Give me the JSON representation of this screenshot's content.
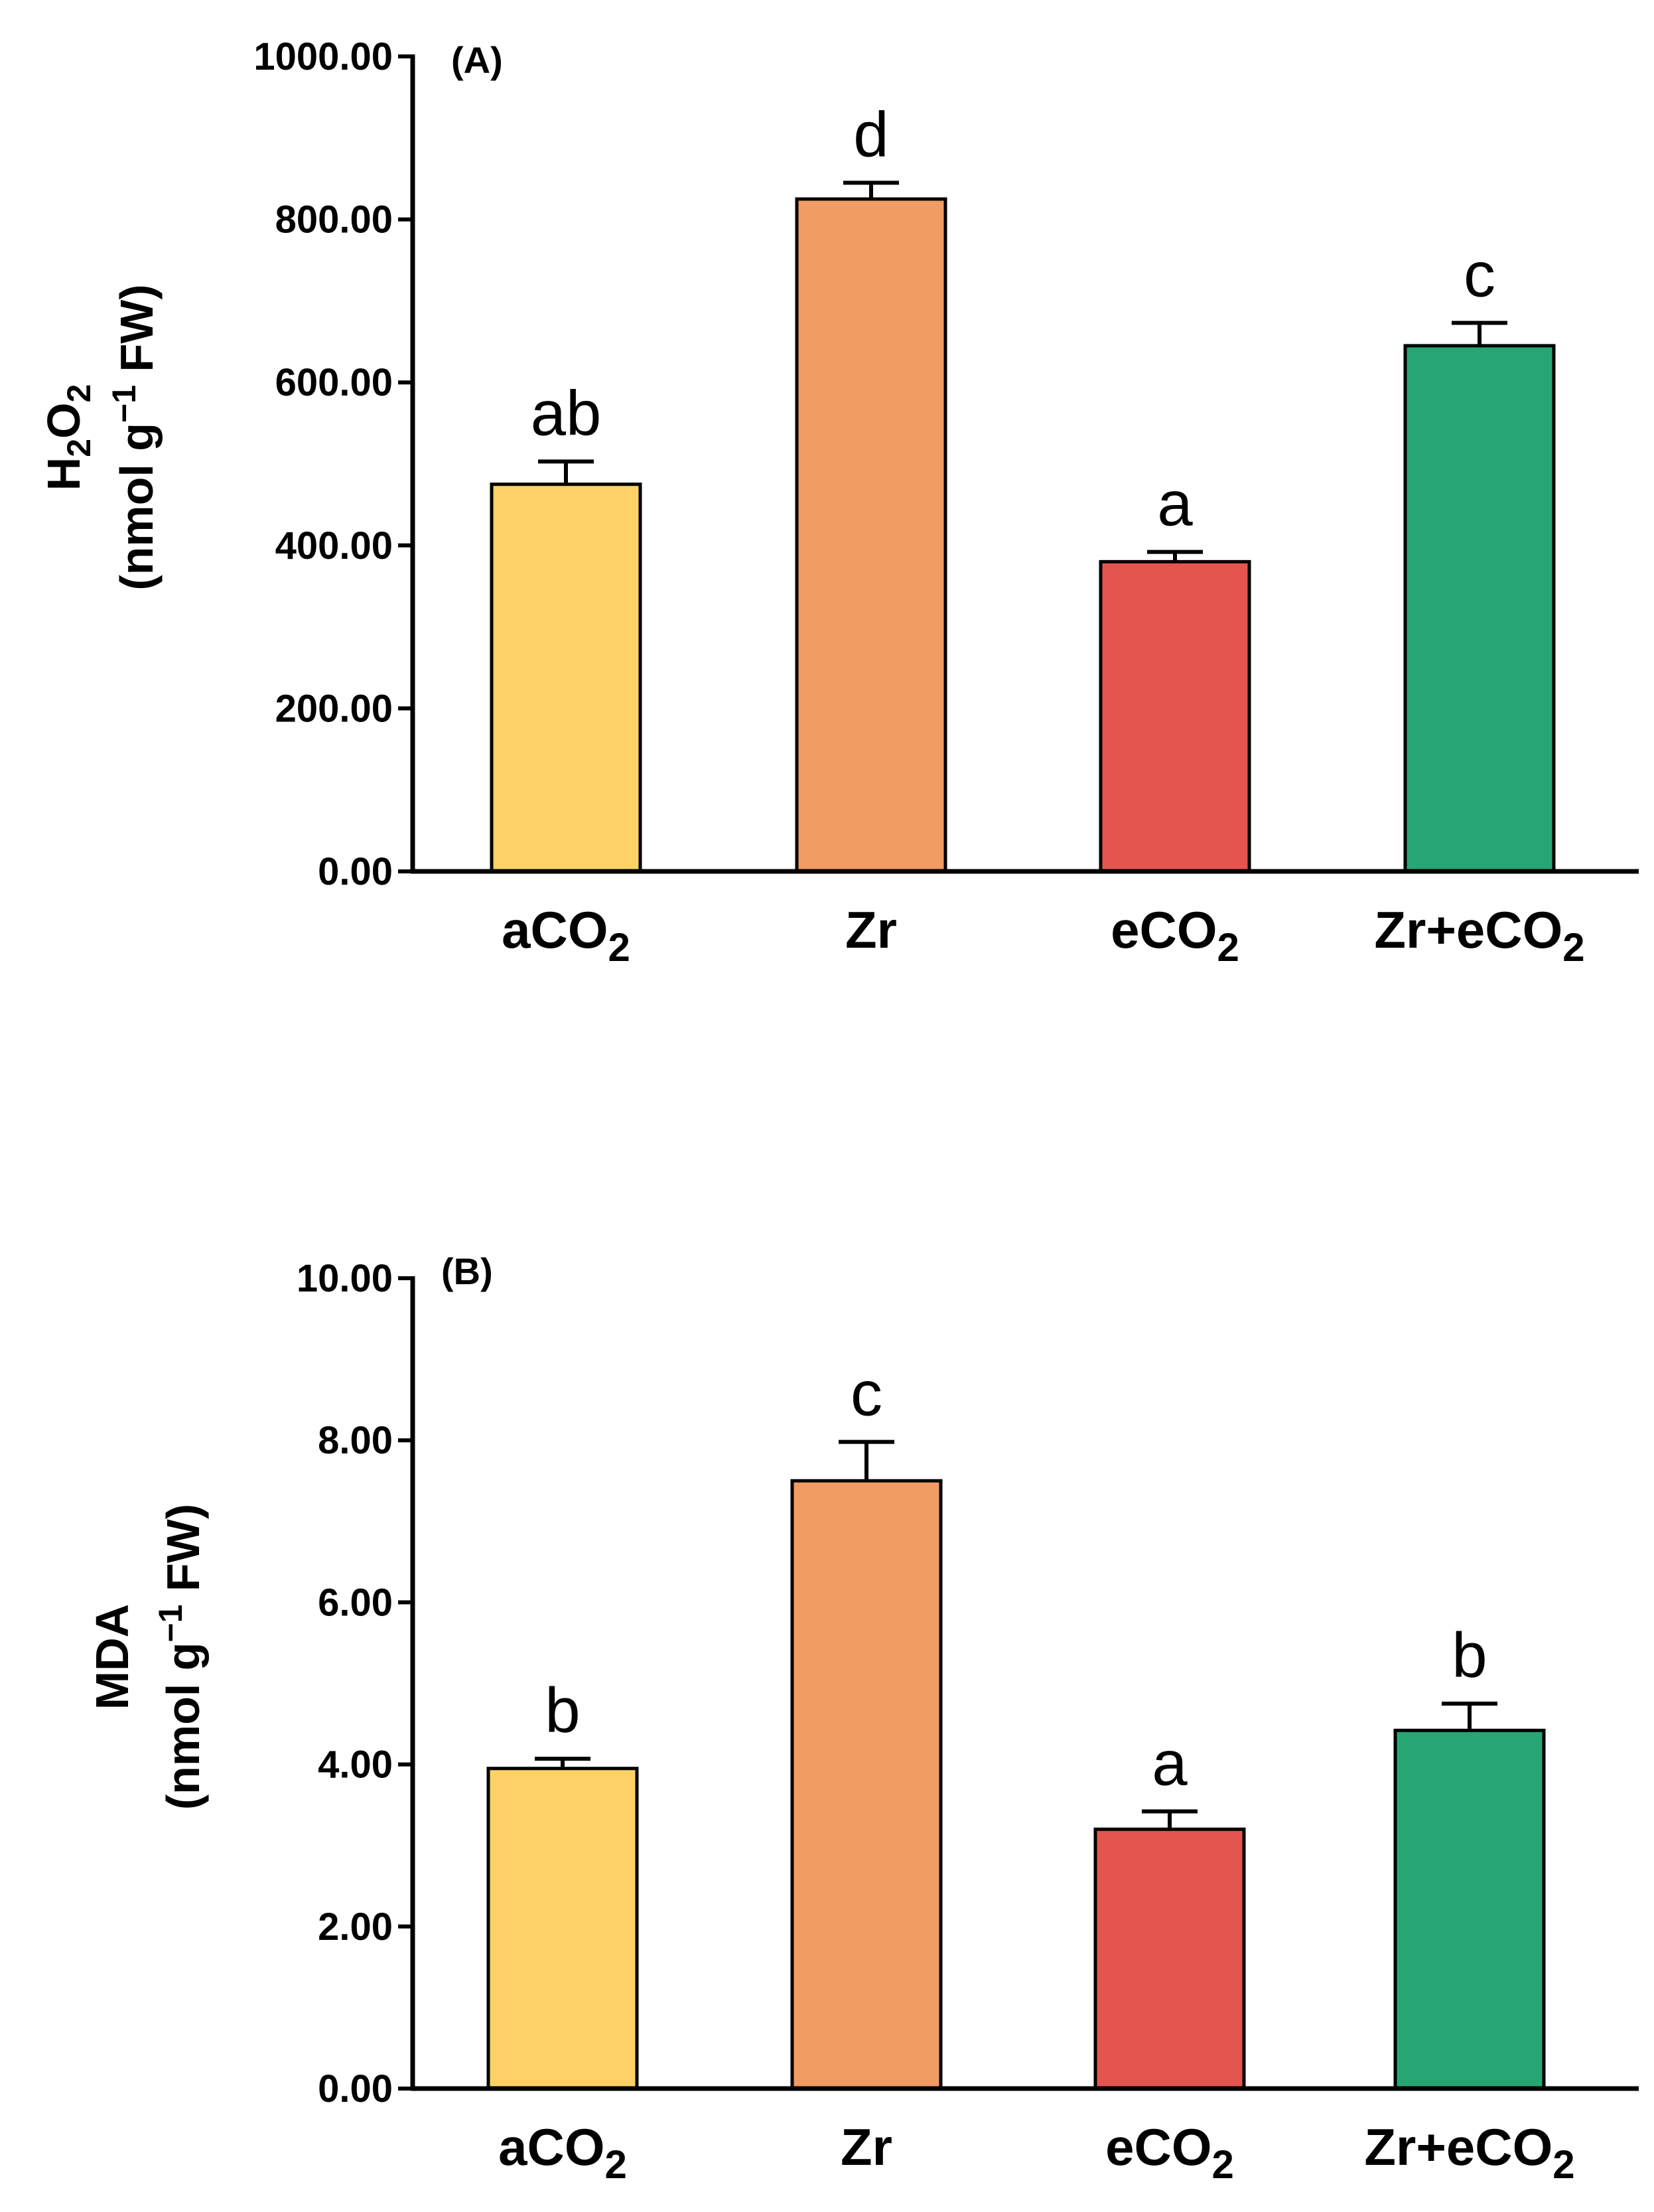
{
  "chart_data": [
    {
      "panel": "(A)",
      "type": "bar",
      "categories": [
        {
          "base": "aCO",
          "sub": "2"
        },
        {
          "base": "Zr",
          "sub": ""
        },
        {
          "base": "eCO",
          "sub": "2"
        },
        {
          "base": "Zr+eCO",
          "sub": "2"
        }
      ],
      "values": [
        475,
        825,
        380,
        645
      ],
      "errors": [
        28,
        20,
        12,
        28
      ],
      "significance": [
        "ab",
        "d",
        "a",
        "c"
      ],
      "colors": [
        "#FDD166",
        "#F09C64",
        "#E5554F",
        "#28A574"
      ],
      "ylabel_line1": {
        "base": "H",
        "sub1": "2",
        "mid": "O",
        "sub2": "2"
      },
      "ylabel_line2": {
        "pre": "(nmol g",
        "sup": "−1",
        "post": " FW)"
      },
      "ylim": [
        0,
        1000
      ],
      "yticks": [
        0,
        200,
        400,
        600,
        800,
        1000
      ],
      "tick_labels": [
        "0.00",
        "200.00",
        "400.00",
        "600.00",
        "800.00",
        "1000.00"
      ]
    },
    {
      "panel": "(B)",
      "type": "bar",
      "categories": [
        {
          "base": "aCO",
          "sub": "2"
        },
        {
          "base": "Zr",
          "sub": ""
        },
        {
          "base": "eCO",
          "sub": "2"
        },
        {
          "base": "Zr+eCO",
          "sub": "2"
        }
      ],
      "values": [
        3.95,
        7.5,
        3.2,
        4.42
      ],
      "errors": [
        0.12,
        0.48,
        0.22,
        0.33
      ],
      "significance": [
        "b",
        "c",
        "a",
        "b"
      ],
      "colors": [
        "#FDD166",
        "#F09C64",
        "#E5554F",
        "#28A574"
      ],
      "ylabel_line1": {
        "base": "MDA",
        "sub1": "",
        "mid": "",
        "sub2": ""
      },
      "ylabel_line2": {
        "pre": "(nmol g",
        "sup": "−1",
        "post": " FW)"
      },
      "ylim": [
        0,
        10
      ],
      "yticks": [
        0,
        2,
        4,
        6,
        8,
        10
      ],
      "tick_labels": [
        "0.00",
        "2.00",
        "4.00",
        "6.00",
        "8.00",
        "10.00"
      ]
    }
  ]
}
